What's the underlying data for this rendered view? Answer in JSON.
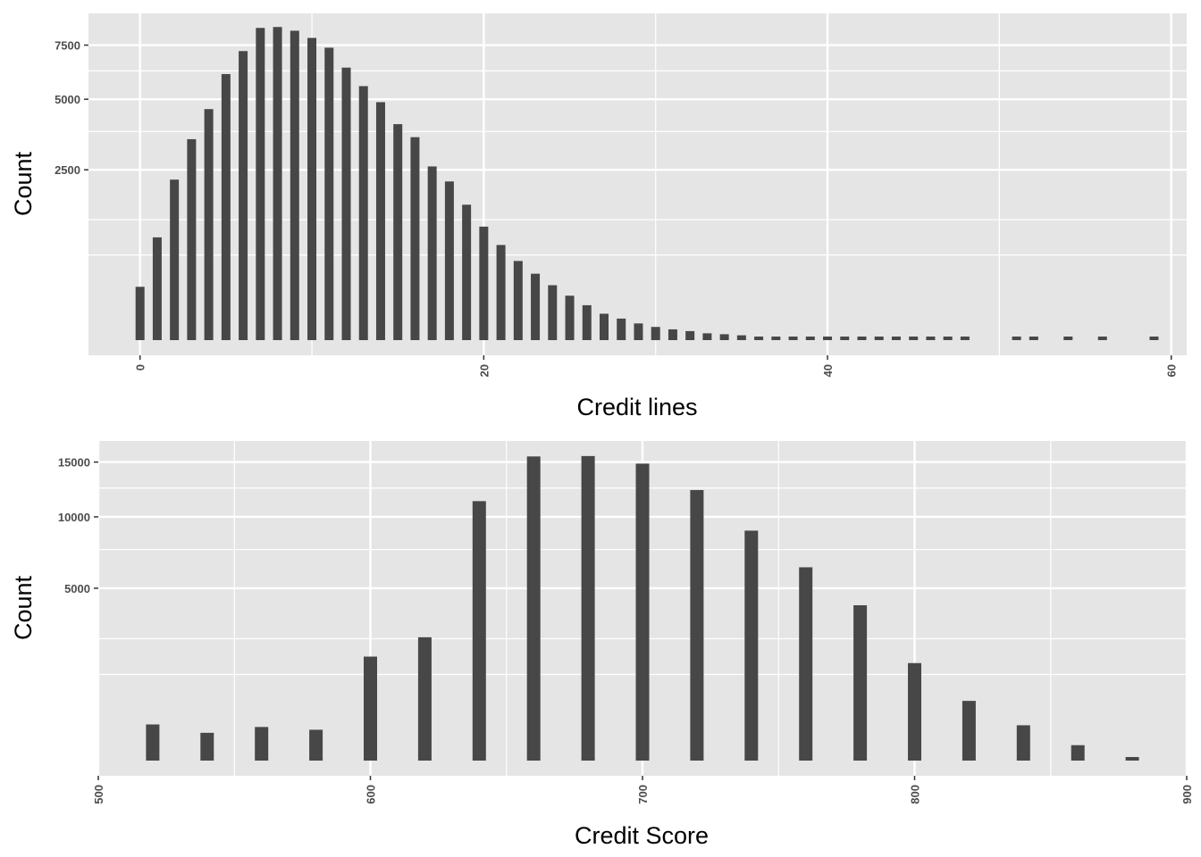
{
  "colors": {
    "panel": "#e5e5e5",
    "grid": "#ffffff",
    "bar": "#474747",
    "text": "#4d4d4d",
    "tick": "#333333"
  },
  "chart_data": [
    {
      "type": "bar",
      "scale_y": "sqrt",
      "xlabel": "Credit lines",
      "ylabel": "Count",
      "xlim": [
        -3,
        60.9
      ],
      "ylim": [
        0,
        9100
      ],
      "x_ticks": [
        0,
        20,
        40,
        60
      ],
      "x_tick_labels": [
        "0",
        "20",
        "40",
        "60"
      ],
      "y_ticks": [
        2500,
        5000,
        7500
      ],
      "y_tick_labels": [
        "2500",
        "5000",
        "7500"
      ],
      "y_minor_ticks": [
        625,
        1250,
        3750,
        6250
      ],
      "x": [
        0,
        1,
        2,
        3,
        4,
        5,
        6,
        7,
        8,
        9,
        10,
        11,
        12,
        13,
        14,
        15,
        16,
        17,
        18,
        19,
        20,
        21,
        22,
        23,
        24,
        25,
        26,
        27,
        28,
        29,
        30,
        31,
        32,
        33,
        34,
        35,
        36,
        37,
        38,
        39,
        40,
        41,
        42,
        43,
        44,
        45,
        46,
        47,
        48,
        51,
        52,
        54,
        56,
        59
      ],
      "values": [
        245,
        910,
        2220,
        3480,
        4600,
        6100,
        7200,
        8400,
        8450,
        8250,
        7870,
        7370,
        6400,
        5560,
        4880,
        4020,
        3550,
        2600,
        2170,
        1580,
        1110,
        780,
        540,
        380,
        260,
        170,
        105,
        60,
        40,
        24,
        15,
        10,
        7,
        4,
        3,
        2,
        1,
        1,
        1,
        1,
        1,
        1,
        1,
        1,
        1,
        1,
        1,
        1,
        1,
        1,
        1,
        1,
        1,
        1
      ]
    },
    {
      "type": "bar",
      "scale_y": "sqrt",
      "xlabel": "Credit Score",
      "ylabel": "Count",
      "xlim": [
        500,
        900
      ],
      "ylim": [
        0,
        17000
      ],
      "x_ticks": [
        500,
        600,
        700,
        800,
        900
      ],
      "x_tick_labels": [
        "500",
        "600",
        "700",
        "800",
        "900"
      ],
      "y_ticks": [
        5000,
        10000,
        15000
      ],
      "y_tick_labels": [
        "5000",
        "10000",
        "15000"
      ],
      "y_minor_ticks": [
        1250,
        2500,
        7500,
        12500
      ],
      "x": [
        520,
        540,
        560,
        580,
        600,
        620,
        640,
        660,
        680,
        700,
        720,
        740,
        760,
        780,
        800,
        820,
        840,
        860,
        880
      ],
      "values": [
        220,
        130,
        190,
        160,
        1820,
        2560,
        11330,
        15570,
        15610,
        14840,
        12320,
        8900,
        6290,
        4060,
        1600,
        600,
        210,
        40,
        1
      ]
    }
  ]
}
